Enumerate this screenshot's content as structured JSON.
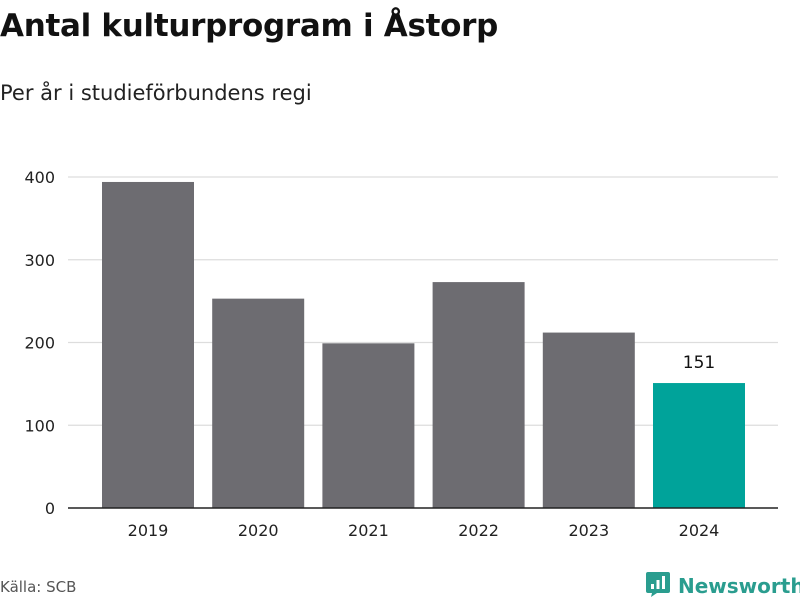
{
  "title": "Antal kulturprogram i Åstorp",
  "subtitle": "Per år i studieförbundens regi",
  "source": "Källa: SCB",
  "brand": {
    "name": "Newsworthy",
    "icon": "newsworthy-logo-icon"
  },
  "colors": {
    "bar": "#6d6c71",
    "highlight": "#00a39a",
    "grid": "#dddddd",
    "axis": "#222222",
    "brand": "#2a9d8f"
  },
  "chart_data": {
    "type": "bar",
    "categories": [
      "2019",
      "2020",
      "2021",
      "2022",
      "2023",
      "2024"
    ],
    "values": [
      394,
      253,
      199,
      273,
      212,
      151
    ],
    "highlight_index": 5,
    "data_labels": [
      {
        "index": 5,
        "text": "151"
      }
    ],
    "yticks": [
      0,
      100,
      200,
      300,
      400
    ],
    "ylim": [
      0,
      400
    ],
    "grid": true,
    "title": "Antal kulturprogram i Åstorp",
    "subtitle": "Per år i studieförbundens regi",
    "xlabel": "",
    "ylabel": ""
  }
}
